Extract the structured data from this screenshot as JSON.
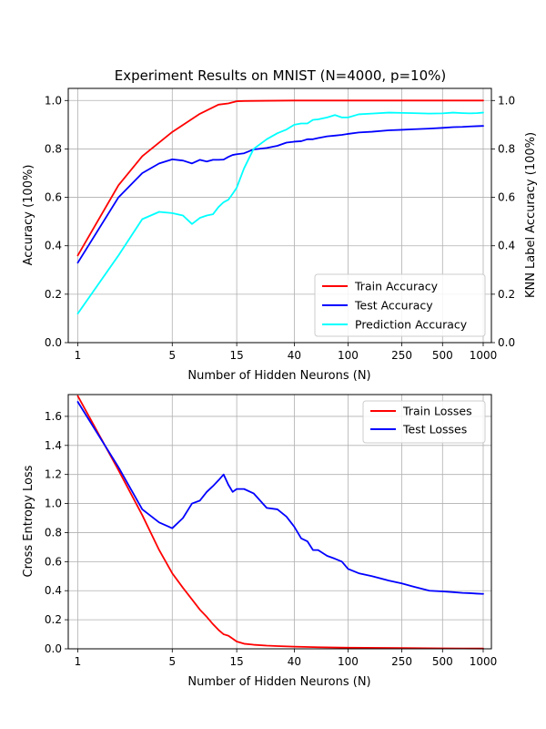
{
  "figure": {
    "background": "#ffffff"
  },
  "chart_data": [
    {
      "type": "line",
      "title": "Experiment Results on MNIST (N=4000, p=10%)",
      "xlabel": "Number of Hidden Neurons (N)",
      "ylabel": "Accuracy (100%)",
      "ylabel_right": "KNN Label Accuracy (100%)",
      "xscale": "log",
      "xlim": [
        0.85,
        1150
      ],
      "ylim": [
        0,
        1.05
      ],
      "xticks": [
        1,
        5,
        15,
        40,
        100,
        250,
        500,
        1000
      ],
      "xtick_labels": [
        "1",
        "5",
        "15",
        "40",
        "100",
        "250",
        "500",
        "1000"
      ],
      "yticks": [
        0,
        0.2,
        0.4,
        0.6,
        0.8,
        1.0
      ],
      "ytick_labels": [
        "0.0",
        "0.2",
        "0.4",
        "0.6",
        "0.8",
        "1.0"
      ],
      "grid": true,
      "legend_position": "lower-right",
      "series": [
        {
          "name": "Train Accuracy",
          "color": "#ff0000",
          "x": [
            1,
            2,
            3,
            5,
            8,
            11,
            13,
            15,
            17,
            25,
            40,
            60,
            100,
            250,
            500,
            1000
          ],
          "y": [
            0.36,
            0.65,
            0.77,
            0.87,
            0.945,
            0.983,
            0.988,
            0.997,
            0.998,
            0.999,
            1.0,
            1.0,
            1.0,
            1.0,
            1.0,
            1.0
          ]
        },
        {
          "name": "Test Accuracy",
          "color": "#0000ff",
          "x": [
            1,
            2,
            3,
            4,
            5,
            6,
            7,
            8,
            9,
            10,
            11,
            12,
            13,
            14,
            15,
            17,
            20,
            25,
            30,
            35,
            40,
            45,
            50,
            55,
            60,
            70,
            80,
            90,
            100,
            120,
            150,
            200,
            250,
            300,
            400,
            500,
            600,
            700,
            800,
            900,
            1000
          ],
          "y": [
            0.33,
            0.6,
            0.7,
            0.74,
            0.757,
            0.752,
            0.74,
            0.755,
            0.748,
            0.755,
            0.755,
            0.756,
            0.767,
            0.775,
            0.778,
            0.782,
            0.798,
            0.804,
            0.813,
            0.826,
            0.83,
            0.832,
            0.84,
            0.84,
            0.845,
            0.852,
            0.855,
            0.858,
            0.862,
            0.868,
            0.871,
            0.877,
            0.879,
            0.881,
            0.884,
            0.887,
            0.89,
            0.891,
            0.893,
            0.894,
            0.895
          ]
        },
        {
          "name": "Prediction Accuracy",
          "color": "#00ffff",
          "x": [
            1,
            2,
            3,
            4,
            5,
            6,
            7,
            8,
            9,
            10,
            11,
            12,
            13,
            14,
            15,
            17,
            20,
            25,
            30,
            35,
            40,
            45,
            50,
            55,
            60,
            70,
            80,
            90,
            100,
            120,
            150,
            200,
            250,
            300,
            400,
            500,
            600,
            700,
            800,
            900,
            1000
          ],
          "y": [
            0.12,
            0.36,
            0.51,
            0.54,
            0.535,
            0.525,
            0.49,
            0.515,
            0.525,
            0.53,
            0.56,
            0.58,
            0.59,
            0.615,
            0.64,
            0.72,
            0.8,
            0.84,
            0.865,
            0.88,
            0.9,
            0.905,
            0.905,
            0.92,
            0.922,
            0.93,
            0.94,
            0.93,
            0.93,
            0.943,
            0.946,
            0.95,
            0.949,
            0.948,
            0.946,
            0.947,
            0.95,
            0.948,
            0.947,
            0.948,
            0.95
          ]
        }
      ]
    },
    {
      "type": "line",
      "title": "",
      "xlabel": "Number of Hidden Neurons (N)",
      "ylabel": "Cross Entropy Loss",
      "xscale": "log",
      "xlim": [
        0.85,
        1150
      ],
      "ylim": [
        0,
        1.75
      ],
      "xticks": [
        1,
        5,
        15,
        40,
        100,
        250,
        500,
        1000
      ],
      "xtick_labels": [
        "1",
        "5",
        "15",
        "40",
        "100",
        "250",
        "500",
        "1000"
      ],
      "yticks": [
        0,
        0.2,
        0.4,
        0.6,
        0.8,
        1.0,
        1.2,
        1.4,
        1.6
      ],
      "ytick_labels": [
        "0.0",
        "0.2",
        "0.4",
        "0.6",
        "0.8",
        "1.0",
        "1.2",
        "1.4",
        "1.6"
      ],
      "grid": true,
      "legend_position": "upper-right",
      "series": [
        {
          "name": "Train Losses",
          "color": "#ff0000",
          "x": [
            1,
            2,
            3,
            4,
            5,
            6,
            7,
            8,
            9,
            10,
            11,
            12,
            13,
            14,
            15,
            17,
            20,
            25,
            30,
            40,
            60,
            100,
            250,
            500,
            1000
          ],
          "y": [
            1.74,
            1.23,
            0.92,
            0.68,
            0.52,
            0.42,
            0.34,
            0.27,
            0.22,
            0.17,
            0.13,
            0.1,
            0.09,
            0.07,
            0.05,
            0.035,
            0.028,
            0.022,
            0.019,
            0.015,
            0.011,
            0.008,
            0.005,
            0.003,
            0.002
          ]
        },
        {
          "name": "Test Losses",
          "color": "#0000ff",
          "x": [
            1,
            2,
            3,
            4,
            5,
            6,
            7,
            8,
            9,
            10,
            11,
            12,
            13,
            14,
            15,
            17,
            20,
            25,
            30,
            35,
            40,
            45,
            50,
            55,
            60,
            70,
            80,
            90,
            100,
            120,
            150,
            200,
            250,
            300,
            400,
            500,
            600,
            700,
            800,
            900,
            1000
          ],
          "y": [
            1.7,
            1.25,
            0.96,
            0.87,
            0.83,
            0.9,
            1.0,
            1.02,
            1.08,
            1.12,
            1.16,
            1.2,
            1.13,
            1.08,
            1.1,
            1.1,
            1.07,
            0.97,
            0.96,
            0.91,
            0.84,
            0.76,
            0.74,
            0.68,
            0.68,
            0.64,
            0.62,
            0.6,
            0.55,
            0.52,
            0.5,
            0.47,
            0.45,
            0.43,
            0.4,
            0.395,
            0.39,
            0.385,
            0.383,
            0.38,
            0.378
          ]
        }
      ]
    }
  ]
}
